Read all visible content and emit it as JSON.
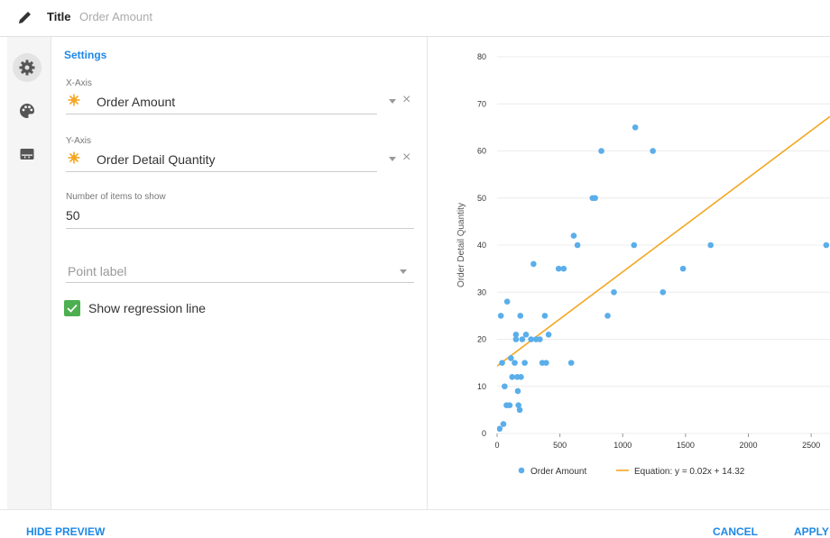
{
  "header": {
    "title_label": "Title",
    "title_value": "Order Amount"
  },
  "rail": {
    "icons": [
      "gear-icon",
      "palette-icon",
      "table-icon"
    ]
  },
  "settings": {
    "heading": "Settings",
    "x_axis": {
      "label": "X-Axis",
      "value": "Order Amount"
    },
    "y_axis": {
      "label": "Y-Axis",
      "value": "Order Detail Quantity"
    },
    "items": {
      "label": "Number of items to show",
      "value": "50"
    },
    "point_label": {
      "placeholder": "Point label"
    },
    "regression": {
      "label": "Show regression line",
      "checked": true
    }
  },
  "footer": {
    "hide_preview": "HIDE PREVIEW",
    "cancel": "CANCEL",
    "apply": "APPLY"
  },
  "colors": {
    "accent": "#1e88e5",
    "point": "#5aaeea",
    "regression": "#f5a623",
    "check": "#4caf50"
  },
  "chart_data": {
    "type": "scatter",
    "ylabel": "Order Detail Quantity",
    "xlim": [
      0,
      2650
    ],
    "ylim": [
      0,
      80
    ],
    "x_ticks": [
      0,
      500,
      1000,
      1500,
      2000,
      2500
    ],
    "x_tick_labels": [
      "0",
      "500",
      "1000",
      "1500",
      "2000",
      "2500"
    ],
    "y_ticks": [
      0,
      10,
      20,
      30,
      40,
      50,
      60,
      70,
      80
    ],
    "grid": "horizontal",
    "legend": {
      "placement": "bottom",
      "points_label": "Order Amount",
      "line_label": "Equation: y = 0.02x + 14.32"
    },
    "regression": {
      "slope": 0.02,
      "intercept": 14.32
    },
    "series": [
      {
        "name": "Order Amount",
        "points": [
          [
            20,
            1
          ],
          [
            50,
            2
          ],
          [
            30,
            25
          ],
          [
            40,
            15
          ],
          [
            80,
            28
          ],
          [
            60,
            10
          ],
          [
            75,
            6
          ],
          [
            100,
            6
          ],
          [
            110,
            16
          ],
          [
            120,
            12
          ],
          [
            140,
            15
          ],
          [
            150,
            20
          ],
          [
            150,
            21
          ],
          [
            160,
            12
          ],
          [
            165,
            9
          ],
          [
            170,
            6
          ],
          [
            180,
            5
          ],
          [
            185,
            25
          ],
          [
            190,
            12
          ],
          [
            200,
            20
          ],
          [
            220,
            15
          ],
          [
            230,
            21
          ],
          [
            270,
            20
          ],
          [
            290,
            36
          ],
          [
            310,
            20
          ],
          [
            340,
            20
          ],
          [
            360,
            15
          ],
          [
            380,
            25
          ],
          [
            390,
            15
          ],
          [
            410,
            21
          ],
          [
            490,
            35
          ],
          [
            530,
            35
          ],
          [
            590,
            15
          ],
          [
            610,
            42
          ],
          [
            640,
            40
          ],
          [
            760,
            50
          ],
          [
            780,
            50
          ],
          [
            830,
            60
          ],
          [
            880,
            25
          ],
          [
            930,
            30
          ],
          [
            1090,
            40
          ],
          [
            1100,
            65
          ],
          [
            1240,
            60
          ],
          [
            1320,
            30
          ],
          [
            1480,
            35
          ],
          [
            1700,
            40
          ],
          [
            2620,
            40
          ]
        ]
      }
    ]
  }
}
